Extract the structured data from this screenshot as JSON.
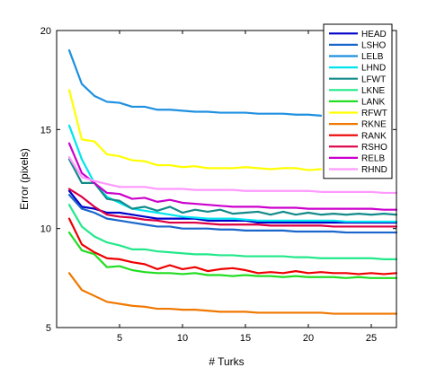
{
  "chart_data": {
    "type": "line",
    "title": "",
    "xlabel": "# Turks",
    "ylabel": "Error (pixels)",
    "xlim": [
      0,
      27
    ],
    "ylim": [
      5,
      20
    ],
    "xticks": [
      5,
      10,
      15,
      20,
      25
    ],
    "yticks": [
      5,
      10,
      15,
      20
    ],
    "grid": false,
    "legend_position": "top-right",
    "series": [
      {
        "name": "HEAD",
        "color": "#0000cc",
        "x": [
          1,
          2,
          3,
          4,
          5,
          6,
          7,
          8,
          9,
          10,
          11,
          12,
          13,
          14,
          15,
          16,
          17,
          18,
          19,
          20,
          21,
          22,
          23,
          24,
          25,
          26,
          27
        ],
        "values": [
          11.9,
          11.1,
          11.0,
          10.8,
          10.8,
          10.7,
          10.6,
          10.5,
          10.5,
          10.5,
          10.5,
          10.4,
          10.4,
          10.4,
          10.4,
          10.3,
          10.3,
          10.3,
          10.3,
          10.3,
          10.3,
          10.3,
          10.3,
          10.3,
          10.3,
          10.3,
          10.3
        ]
      },
      {
        "name": "LSHO",
        "color": "#1a66cc",
        "x": [
          1,
          2,
          3,
          4,
          5,
          6,
          7,
          8,
          9,
          10,
          11,
          12,
          13,
          14,
          15,
          16,
          17,
          18,
          19,
          20,
          21,
          22,
          23,
          24,
          25,
          26,
          27
        ],
        "values": [
          11.7,
          11.0,
          10.8,
          10.5,
          10.4,
          10.3,
          10.2,
          10.1,
          10.1,
          10.0,
          10.0,
          10.0,
          9.95,
          9.95,
          9.9,
          9.9,
          9.9,
          9.9,
          9.85,
          9.85,
          9.85,
          9.85,
          9.8,
          9.8,
          9.8,
          9.8,
          9.8
        ]
      },
      {
        "name": "LELB",
        "color": "#1e90e0",
        "x": [
          1,
          2,
          3,
          4,
          5,
          6,
          7,
          8,
          9,
          10,
          11,
          12,
          13,
          14,
          15,
          16,
          17,
          18,
          19,
          20,
          21
        ],
        "values": [
          19.0,
          17.3,
          16.7,
          16.4,
          16.35,
          16.15,
          16.15,
          16.0,
          16.0,
          15.95,
          15.9,
          15.9,
          15.85,
          15.85,
          15.85,
          15.8,
          15.8,
          15.8,
          15.75,
          15.75,
          15.7
        ]
      },
      {
        "name": "LHND",
        "color": "#00e5ee",
        "x": [
          1,
          2,
          3,
          4,
          5,
          6,
          7,
          8,
          9,
          10,
          11,
          12,
          13,
          14,
          15,
          16,
          17,
          18,
          19,
          20,
          21,
          22,
          23,
          24,
          25,
          26,
          27
        ],
        "values": [
          15.2,
          13.5,
          12.3,
          11.6,
          11.3,
          11.0,
          10.9,
          10.8,
          10.7,
          10.6,
          10.55,
          10.5,
          10.5,
          10.5,
          10.45,
          10.4,
          10.4,
          10.4,
          10.4,
          10.4,
          10.4,
          10.4,
          10.35,
          10.35,
          10.35,
          10.35,
          10.35
        ]
      },
      {
        "name": "LFWT",
        "color": "#138a8a",
        "x": [
          1,
          2,
          3,
          4,
          5,
          6,
          7,
          8,
          9,
          10,
          11,
          12,
          13,
          14,
          15,
          16,
          17,
          18,
          19,
          20,
          21,
          22,
          23,
          24,
          25,
          26,
          27
        ],
        "values": [
          13.5,
          12.3,
          12.3,
          11.5,
          11.4,
          11.0,
          11.1,
          10.9,
          11.1,
          10.8,
          10.95,
          10.85,
          10.95,
          10.75,
          10.8,
          10.85,
          10.7,
          10.85,
          10.7,
          10.8,
          10.7,
          10.75,
          10.7,
          10.75,
          10.7,
          10.75,
          10.7
        ]
      },
      {
        "name": "LKNE",
        "color": "#22e88a",
        "x": [
          1,
          2,
          3,
          4,
          5,
          6,
          7,
          8,
          9,
          10,
          11,
          12,
          13,
          14,
          15,
          16,
          17,
          18,
          19,
          20,
          21,
          22,
          23,
          24,
          25,
          26,
          27
        ],
        "values": [
          11.2,
          10.1,
          9.6,
          9.3,
          9.15,
          8.95,
          8.95,
          8.85,
          8.8,
          8.75,
          8.7,
          8.7,
          8.65,
          8.65,
          8.6,
          8.6,
          8.6,
          8.6,
          8.55,
          8.55,
          8.5,
          8.5,
          8.5,
          8.5,
          8.5,
          8.45,
          8.45
        ]
      },
      {
        "name": "LANK",
        "color": "#22dd22",
        "x": [
          1,
          2,
          3,
          4,
          5,
          6,
          7,
          8,
          9,
          10,
          11,
          12,
          13,
          14,
          15,
          16,
          17,
          18,
          19,
          20,
          21,
          22,
          23,
          24,
          25,
          26,
          27
        ],
        "values": [
          9.8,
          8.9,
          8.7,
          8.05,
          8.1,
          7.9,
          7.8,
          7.75,
          7.75,
          7.7,
          7.75,
          7.65,
          7.65,
          7.6,
          7.65,
          7.6,
          7.6,
          7.55,
          7.6,
          7.55,
          7.55,
          7.55,
          7.5,
          7.55,
          7.5,
          7.5,
          7.5
        ]
      },
      {
        "name": "RFWT",
        "color": "#ffff00",
        "x": [
          1,
          2,
          3,
          4,
          5,
          6,
          7,
          8,
          9,
          10,
          11,
          12,
          13,
          14,
          15,
          16,
          17,
          18,
          19,
          20,
          21
        ],
        "values": [
          17.0,
          14.5,
          14.4,
          13.75,
          13.65,
          13.45,
          13.4,
          13.2,
          13.2,
          13.1,
          13.15,
          13.05,
          13.05,
          13.05,
          13.1,
          13.05,
          13.0,
          13.05,
          13.05,
          12.95,
          13.0
        ]
      },
      {
        "name": "RKNE",
        "color": "#f07800",
        "x": [
          1,
          2,
          3,
          4,
          5,
          6,
          7,
          8,
          9,
          10,
          11,
          12,
          13,
          14,
          15,
          16,
          17,
          18,
          19,
          20,
          21,
          22,
          23,
          24,
          25,
          26,
          27
        ],
        "values": [
          7.75,
          6.9,
          6.6,
          6.3,
          6.2,
          6.1,
          6.05,
          5.95,
          5.95,
          5.9,
          5.9,
          5.85,
          5.8,
          5.8,
          5.8,
          5.75,
          5.75,
          5.75,
          5.75,
          5.75,
          5.75,
          5.7,
          5.7,
          5.7,
          5.7,
          5.7,
          5.7
        ]
      },
      {
        "name": "RANK",
        "color": "#ee0000",
        "x": [
          1,
          2,
          3,
          4,
          5,
          6,
          7,
          8,
          9,
          10,
          11,
          12,
          13,
          14,
          15,
          16,
          17,
          18,
          19,
          20,
          21,
          22,
          23,
          24,
          25,
          26,
          27
        ],
        "values": [
          10.5,
          9.2,
          8.8,
          8.5,
          8.45,
          8.3,
          8.2,
          7.95,
          8.15,
          7.95,
          8.05,
          7.85,
          7.95,
          8.0,
          7.9,
          7.75,
          7.8,
          7.75,
          7.85,
          7.75,
          7.8,
          7.75,
          7.75,
          7.7,
          7.75,
          7.7,
          7.75
        ]
      },
      {
        "name": "RSHO",
        "color": "#dd0044",
        "x": [
          1,
          2,
          3,
          4,
          5,
          6,
          7,
          8,
          9,
          10,
          11,
          12,
          13,
          14,
          15,
          16,
          17,
          18,
          19,
          20,
          21,
          22,
          23,
          24,
          25,
          26,
          27
        ],
        "values": [
          12.0,
          11.6,
          11.1,
          10.7,
          10.6,
          10.55,
          10.45,
          10.4,
          10.3,
          10.3,
          10.3,
          10.25,
          10.2,
          10.2,
          10.2,
          10.2,
          10.15,
          10.15,
          10.15,
          10.15,
          10.15,
          10.1,
          10.1,
          10.1,
          10.1,
          10.1,
          10.1
        ]
      },
      {
        "name": "RELB",
        "color": "#cc00cc",
        "x": [
          1,
          2,
          3,
          4,
          5,
          6,
          7,
          8,
          9,
          10,
          11,
          12,
          13,
          14,
          15,
          16,
          17,
          18,
          19,
          20,
          21,
          22,
          23,
          24,
          25,
          26,
          27
        ],
        "values": [
          14.3,
          12.8,
          12.3,
          11.8,
          11.75,
          11.5,
          11.55,
          11.35,
          11.45,
          11.3,
          11.25,
          11.2,
          11.15,
          11.1,
          11.1,
          11.1,
          11.05,
          11.05,
          11.05,
          11.0,
          11.0,
          11.0,
          11.0,
          11.0,
          11.0,
          10.95,
          10.95
        ]
      },
      {
        "name": "RHND",
        "color": "#ff99ff",
        "x": [
          1,
          2,
          3,
          4,
          5,
          6,
          7,
          8,
          9,
          10,
          11,
          12,
          13,
          14,
          15,
          16,
          17,
          18,
          19,
          20,
          21,
          22,
          23,
          24,
          25,
          26,
          27
        ],
        "values": [
          13.6,
          12.6,
          12.4,
          12.25,
          12.1,
          12.1,
          12.1,
          12.0,
          12.0,
          12.0,
          11.95,
          11.95,
          11.95,
          11.95,
          11.9,
          11.9,
          11.9,
          11.9,
          11.9,
          11.9,
          11.85,
          11.85,
          11.85,
          11.85,
          11.85,
          11.8,
          11.8
        ]
      }
    ]
  }
}
